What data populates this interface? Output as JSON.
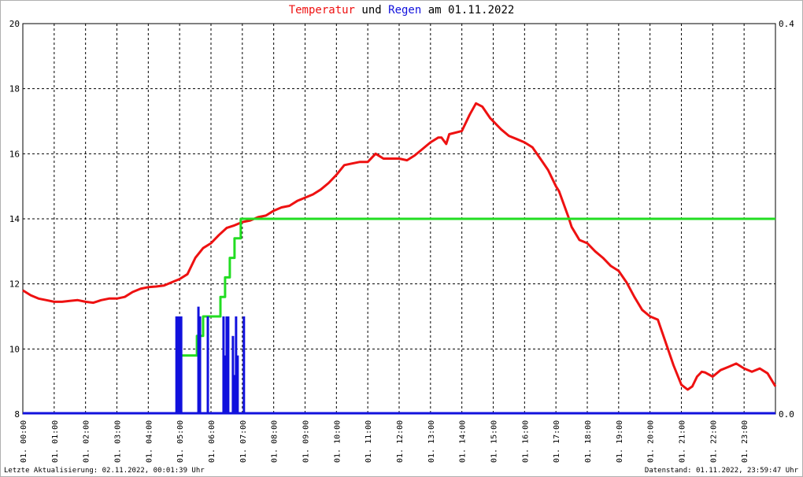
{
  "header": {
    "title_part1": "Temperatur",
    "title_part2": " und ",
    "title_part3": "Regen",
    "title_part4": " am 01.11.2022"
  },
  "footer": {
    "last_update": "Letzte Aktualisierung: 02.11.2022, 00:01:39 Uhr",
    "data_state": "Datenstand: 01.11.2022, 23:59:47 Uhr"
  },
  "colors": {
    "temperature": "#ee1111",
    "rain_sum": "#22dd22",
    "rain_amount": "#1111dd",
    "grid": "#000000"
  },
  "chart_data": {
    "type": "line",
    "title": "Temperatur und Regen am 01.11.2022",
    "x_range_hours": [
      0,
      24
    ],
    "y_left": {
      "ylim": [
        8,
        20
      ],
      "ticks": [
        "8",
        "10",
        "12",
        "14",
        "16",
        "18",
        "20"
      ]
    },
    "y_right": {
      "ylim": [
        0,
        0.4
      ],
      "ticks": [
        "0.0",
        "0.4"
      ]
    },
    "x_tick_labels": [
      "01. 00:00",
      "01. 01:00",
      "01. 02:00",
      "01. 03:00",
      "01. 04:00",
      "01. 05:00",
      "01. 06:00",
      "01. 07:00",
      "01. 08:00",
      "01. 09:00",
      "01. 10:00",
      "01. 11:00",
      "01. 12:00",
      "01. 13:00",
      "01. 14:00",
      "01. 15:00",
      "01. 16:00",
      "01. 17:00",
      "01. 18:00",
      "01. 19:00",
      "01. 20:00",
      "01. 21:00",
      "01. 22:00",
      "01. 23:00"
    ],
    "grid": true,
    "series": [
      {
        "name": "Temperatur",
        "axis": "left",
        "points": [
          [
            0.0,
            11.8
          ],
          [
            0.25,
            11.65
          ],
          [
            0.5,
            11.55
          ],
          [
            0.75,
            11.5
          ],
          [
            1.0,
            11.45
          ],
          [
            1.25,
            11.45
          ],
          [
            1.5,
            11.48
          ],
          [
            1.75,
            11.5
          ],
          [
            2.0,
            11.45
          ],
          [
            2.25,
            11.42
          ],
          [
            2.5,
            11.5
          ],
          [
            2.75,
            11.55
          ],
          [
            3.0,
            11.55
          ],
          [
            3.25,
            11.6
          ],
          [
            3.5,
            11.75
          ],
          [
            3.75,
            11.85
          ],
          [
            4.0,
            11.9
          ],
          [
            4.25,
            11.92
          ],
          [
            4.5,
            11.95
          ],
          [
            4.75,
            12.05
          ],
          [
            5.0,
            12.15
          ],
          [
            5.25,
            12.3
          ],
          [
            5.5,
            12.8
          ],
          [
            5.75,
            13.1
          ],
          [
            6.0,
            13.25
          ],
          [
            6.25,
            13.5
          ],
          [
            6.5,
            13.72
          ],
          [
            6.75,
            13.8
          ],
          [
            7.0,
            13.9
          ],
          [
            7.25,
            13.95
          ],
          [
            7.5,
            14.05
          ],
          [
            7.75,
            14.1
          ],
          [
            8.0,
            14.25
          ],
          [
            8.25,
            14.35
          ],
          [
            8.5,
            14.4
          ],
          [
            8.75,
            14.55
          ],
          [
            9.0,
            14.65
          ],
          [
            9.25,
            14.75
          ],
          [
            9.5,
            14.9
          ],
          [
            9.75,
            15.1
          ],
          [
            10.0,
            15.35
          ],
          [
            10.25,
            15.65
          ],
          [
            10.5,
            15.7
          ],
          [
            10.75,
            15.75
          ],
          [
            11.0,
            15.75
          ],
          [
            11.25,
            16.0
          ],
          [
            11.5,
            15.85
          ],
          [
            11.75,
            15.85
          ],
          [
            12.0,
            15.85
          ],
          [
            12.25,
            15.8
          ],
          [
            12.5,
            15.95
          ],
          [
            12.75,
            16.15
          ],
          [
            13.0,
            16.35
          ],
          [
            13.25,
            16.5
          ],
          [
            13.35,
            16.5
          ],
          [
            13.5,
            16.3
          ],
          [
            13.6,
            16.6
          ],
          [
            14.0,
            16.7
          ],
          [
            14.25,
            17.2
          ],
          [
            14.45,
            17.55
          ],
          [
            14.65,
            17.45
          ],
          [
            14.9,
            17.1
          ],
          [
            15.25,
            16.75
          ],
          [
            15.5,
            16.55
          ],
          [
            15.75,
            16.45
          ],
          [
            16.0,
            16.35
          ],
          [
            16.25,
            16.2
          ],
          [
            16.5,
            15.85
          ],
          [
            16.75,
            15.5
          ],
          [
            17.0,
            15.0
          ],
          [
            17.1,
            14.85
          ],
          [
            17.4,
            14.05
          ],
          [
            17.5,
            13.75
          ],
          [
            17.75,
            13.35
          ],
          [
            18.0,
            13.25
          ],
          [
            18.25,
            13.0
          ],
          [
            18.5,
            12.8
          ],
          [
            18.75,
            12.55
          ],
          [
            19.0,
            12.4
          ],
          [
            19.25,
            12.05
          ],
          [
            19.5,
            11.6
          ],
          [
            19.75,
            11.2
          ],
          [
            20.0,
            11.0
          ],
          [
            20.25,
            10.9
          ],
          [
            20.5,
            10.2
          ],
          [
            20.75,
            9.5
          ],
          [
            21.0,
            8.9
          ],
          [
            21.2,
            8.75
          ],
          [
            21.35,
            8.85
          ],
          [
            21.5,
            9.15
          ],
          [
            21.65,
            9.3
          ],
          [
            21.75,
            9.28
          ],
          [
            22.0,
            9.15
          ],
          [
            22.25,
            9.35
          ],
          [
            22.5,
            9.45
          ],
          [
            22.75,
            9.55
          ],
          [
            23.0,
            9.4
          ],
          [
            23.25,
            9.3
          ],
          [
            23.5,
            9.4
          ],
          [
            23.75,
            9.25
          ],
          [
            24.0,
            8.85
          ]
        ]
      },
      {
        "name": "Regen (Summe)",
        "axis": "right",
        "points": [
          [
            4.95,
            0.0
          ],
          [
            4.95,
            0.06
          ],
          [
            5.55,
            0.06
          ],
          [
            5.55,
            0.08
          ],
          [
            5.75,
            0.08
          ],
          [
            5.75,
            0.1
          ],
          [
            6.3,
            0.1
          ],
          [
            6.3,
            0.12
          ],
          [
            6.45,
            0.12
          ],
          [
            6.45,
            0.14
          ],
          [
            6.6,
            0.14
          ],
          [
            6.6,
            0.16
          ],
          [
            6.75,
            0.16
          ],
          [
            6.75,
            0.18
          ],
          [
            6.95,
            0.18
          ],
          [
            6.95,
            0.2
          ],
          [
            7.1,
            0.2
          ],
          [
            7.1,
            0.2
          ],
          [
            24.0,
            0.2
          ]
        ]
      },
      {
        "name": "Regen",
        "axis": "right",
        "bars": [
          [
            4.9,
            0.1
          ],
          [
            4.95,
            0.1
          ],
          [
            5.0,
            0.1
          ],
          [
            5.05,
            0.1
          ],
          [
            5.6,
            0.11
          ],
          [
            5.65,
            0.1
          ],
          [
            5.9,
            0.1
          ],
          [
            6.4,
            0.1
          ],
          [
            6.45,
            0.06
          ],
          [
            6.5,
            0.1
          ],
          [
            6.55,
            0.1
          ],
          [
            6.7,
            0.08
          ],
          [
            6.75,
            0.04
          ],
          [
            6.8,
            0.1
          ],
          [
            6.85,
            0.06
          ],
          [
            7.05,
            0.1
          ]
        ]
      }
    ]
  }
}
